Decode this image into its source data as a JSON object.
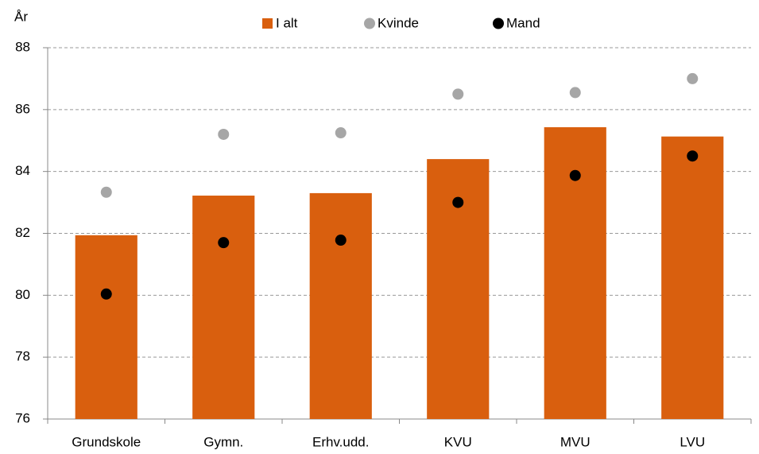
{
  "chart_data": {
    "type": "bar",
    "y_label": "År",
    "categories": [
      "Grundskole",
      "Gymn.",
      "Erhv.udd.",
      "KVU",
      "MVU",
      "LVU"
    ],
    "series": [
      {
        "name": "I alt",
        "type": "bar",
        "color": "#d95f0e",
        "values": [
          81.94,
          83.22,
          83.3,
          84.4,
          85.43,
          85.13
        ]
      },
      {
        "name": "Kvinde",
        "type": "scatter",
        "color": "#a6a6a6",
        "values": [
          83.33,
          85.2,
          85.25,
          86.5,
          86.55,
          87.0
        ]
      },
      {
        "name": "Mand",
        "type": "scatter",
        "color": "#000000",
        "values": [
          80.04,
          81.7,
          81.78,
          83.0,
          83.87,
          84.5
        ]
      }
    ],
    "ylim": [
      76,
      88
    ],
    "yticks": [
      76,
      78,
      80,
      82,
      84,
      86,
      88
    ],
    "grid": true,
    "legend": "top"
  }
}
